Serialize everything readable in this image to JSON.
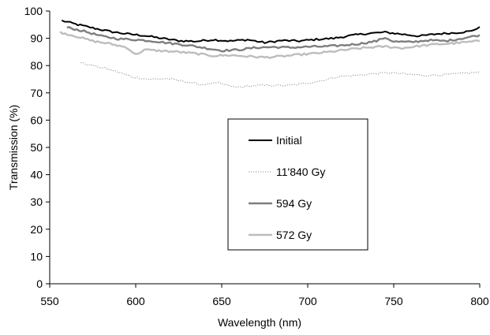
{
  "chart_data": {
    "type": "line",
    "xlabel": "Wavelength (nm)",
    "ylabel": "Transmission (%)",
    "xlim": [
      550,
      800
    ],
    "ylim": [
      0,
      100
    ],
    "xticks": [
      550,
      600,
      650,
      700,
      750,
      800
    ],
    "yticks": [
      0,
      10,
      20,
      30,
      40,
      50,
      60,
      70,
      80,
      90,
      100
    ],
    "grid": false,
    "legend_position": "center",
    "series": [
      {
        "name": "Initial",
        "color": "#000000",
        "style": "solid",
        "points": [
          [
            557,
            96.5
          ],
          [
            565,
            95.2
          ],
          [
            575,
            93.8
          ],
          [
            585,
            92.5
          ],
          [
            595,
            91.6
          ],
          [
            605,
            91.0
          ],
          [
            615,
            90.0
          ],
          [
            625,
            89.1
          ],
          [
            635,
            88.9
          ],
          [
            645,
            89.5
          ],
          [
            655,
            89.0
          ],
          [
            665,
            89.5
          ],
          [
            675,
            88.4
          ],
          [
            685,
            89.2
          ],
          [
            695,
            89.0
          ],
          [
            705,
            89.6
          ],
          [
            715,
            90.0
          ],
          [
            725,
            91.0
          ],
          [
            735,
            91.8
          ],
          [
            745,
            92.2
          ],
          [
            755,
            91.5
          ],
          [
            765,
            90.8
          ],
          [
            775,
            91.6
          ],
          [
            785,
            92.0
          ],
          [
            795,
            92.6
          ],
          [
            800,
            94.2
          ]
        ]
      },
      {
        "name": "11'840 Gy",
        "color": "#8c8c8c",
        "style": "dotted",
        "points": [
          [
            568,
            81.0
          ],
          [
            578,
            79.6
          ],
          [
            588,
            78.0
          ],
          [
            598,
            75.8
          ],
          [
            608,
            75.0
          ],
          [
            618,
            75.2
          ],
          [
            628,
            74.2
          ],
          [
            638,
            73.0
          ],
          [
            648,
            73.6
          ],
          [
            658,
            72.0
          ],
          [
            668,
            72.6
          ],
          [
            678,
            72.8
          ],
          [
            688,
            72.6
          ],
          [
            698,
            73.4
          ],
          [
            708,
            74.5
          ],
          [
            718,
            76.0
          ],
          [
            728,
            76.4
          ],
          [
            738,
            77.0
          ],
          [
            748,
            77.4
          ],
          [
            758,
            76.8
          ],
          [
            768,
            76.4
          ],
          [
            778,
            76.6
          ],
          [
            788,
            77.0
          ],
          [
            800,
            77.6
          ]
        ]
      },
      {
        "name": "594 Gy",
        "color": "#7e7e7e",
        "style": "solid",
        "points": [
          [
            560,
            94.0
          ],
          [
            570,
            92.6
          ],
          [
            580,
            90.8
          ],
          [
            590,
            89.8
          ],
          [
            600,
            89.5
          ],
          [
            610,
            89.0
          ],
          [
            620,
            88.2
          ],
          [
            630,
            87.5
          ],
          [
            640,
            86.5
          ],
          [
            650,
            85.5
          ],
          [
            660,
            85.8
          ],
          [
            670,
            86.6
          ],
          [
            680,
            86.8
          ],
          [
            690,
            86.6
          ],
          [
            700,
            86.9
          ],
          [
            710,
            87.0
          ],
          [
            720,
            87.4
          ],
          [
            730,
            88.0
          ],
          [
            740,
            89.0
          ],
          [
            745,
            90.3
          ],
          [
            750,
            88.8
          ],
          [
            760,
            88.6
          ],
          [
            770,
            89.3
          ],
          [
            780,
            89.0
          ],
          [
            790,
            90.0
          ],
          [
            800,
            91.2
          ]
        ]
      },
      {
        "name": "572 Gy",
        "color": "#bdbdbd",
        "style": "solid",
        "points": [
          [
            556,
            92.2
          ],
          [
            565,
            90.8
          ],
          [
            575,
            89.0
          ],
          [
            585,
            88.0
          ],
          [
            595,
            86.6
          ],
          [
            600,
            84.0
          ],
          [
            605,
            85.8
          ],
          [
            615,
            85.4
          ],
          [
            625,
            85.0
          ],
          [
            635,
            84.4
          ],
          [
            645,
            83.6
          ],
          [
            655,
            83.8
          ],
          [
            665,
            83.4
          ],
          [
            675,
            83.0
          ],
          [
            685,
            83.4
          ],
          [
            695,
            84.0
          ],
          [
            705,
            84.5
          ],
          [
            715,
            85.2
          ],
          [
            725,
            86.0
          ],
          [
            735,
            86.6
          ],
          [
            745,
            87.0
          ],
          [
            755,
            86.4
          ],
          [
            765,
            87.2
          ],
          [
            775,
            87.8
          ],
          [
            785,
            88.2
          ],
          [
            800,
            89.0
          ]
        ]
      }
    ]
  }
}
